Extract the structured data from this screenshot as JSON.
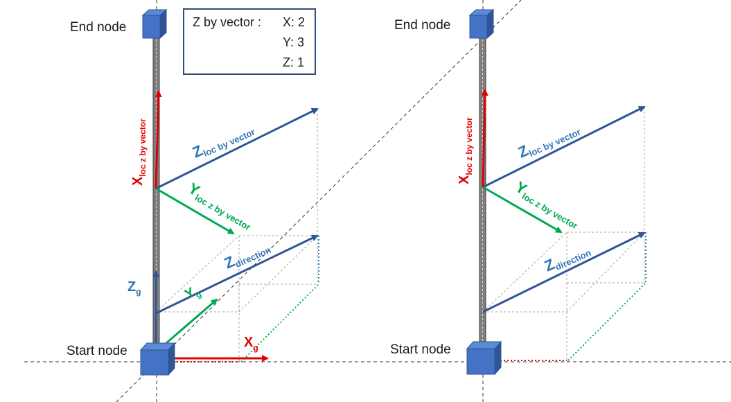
{
  "colors": {
    "node_fill": "#4472c4",
    "node_side": "#2f5597",
    "z_vector": "#2f5597",
    "x_red": "#e00000",
    "y_green": "#00a850",
    "z_blue_label": "#2e75b6",
    "dotted_blue": "#2e75b6",
    "dotted_green": "#00b050",
    "guide_grey": "#a6a6a6"
  },
  "left": {
    "end_node_label": "End node",
    "start_node_label": "Start node",
    "info": {
      "title": "Z by vector :",
      "x": "X: 2",
      "y": "Y: 3",
      "z": "Z: 1"
    },
    "x_loc": {
      "main": "X",
      "sub": "loc z by vector"
    },
    "z_loc": {
      "main": "Z",
      "sub": "loc by vector"
    },
    "y_loc": {
      "main": "Y",
      "sub": "loc z by vector"
    },
    "z_dir": {
      "main": "Z",
      "sub": "direction"
    },
    "z_g": {
      "main": "Z",
      "sub": "g"
    },
    "y_g": {
      "main": "Y",
      "sub": "g"
    },
    "x_g": {
      "main": "X",
      "sub": "g"
    }
  },
  "right": {
    "end_node_label": "End node",
    "start_node_label": "Start node",
    "x_loc": {
      "main": "X",
      "sub": "loc z by vector"
    },
    "z_loc": {
      "main": "Z",
      "sub": "loc by vector"
    },
    "y_loc": {
      "main": "Y",
      "sub": "loc z by vector"
    },
    "z_dir": {
      "main": "Z",
      "sub": "direction"
    }
  }
}
